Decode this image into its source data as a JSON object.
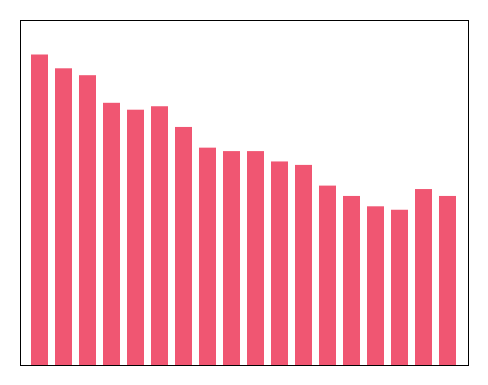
{
  "chart_data": {
    "type": "bar",
    "categories": [
      null,
      null,
      null,
      null,
      null,
      null,
      null,
      null,
      null,
      null,
      null,
      null,
      null,
      null,
      null,
      null,
      null,
      null
    ],
    "values": [
      90,
      86,
      84,
      76,
      74,
      75,
      69,
      63,
      62,
      62,
      59,
      58,
      52,
      49,
      46,
      45,
      51,
      49
    ],
    "color": "#F05672",
    "ylim": [
      0,
      100
    ],
    "tick_labels": false
  }
}
